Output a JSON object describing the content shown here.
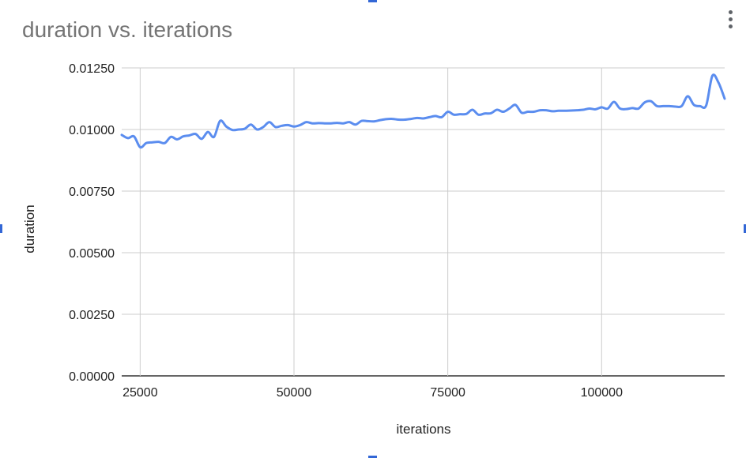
{
  "chart_data": {
    "type": "line",
    "title": "duration vs. iterations",
    "xlabel": "iterations",
    "ylabel": "duration",
    "xlim": [
      22000,
      120000
    ],
    "ylim": [
      0,
      0.0125
    ],
    "x_ticks": [
      25000,
      50000,
      75000,
      100000
    ],
    "x_tick_labels": [
      "25000",
      "50000",
      "75000",
      "100000"
    ],
    "y_ticks": [
      0,
      0.0025,
      0.005,
      0.0075,
      0.01,
      0.0125
    ],
    "y_tick_labels": [
      "0.00000",
      "0.00250",
      "0.00500",
      "0.00750",
      "0.01000",
      "0.01250"
    ],
    "grid": true,
    "legend": "none",
    "series_color": "#5b8def",
    "gridline_color": "#cccccc",
    "series": [
      {
        "x": [
          22000,
          23000,
          24000,
          25000,
          26000,
          27000,
          28000,
          29000,
          30000,
          31000,
          32000,
          33000,
          34000,
          35000,
          36000,
          37000,
          38000,
          39000,
          40000,
          41000,
          42000,
          43000,
          44000,
          45000,
          46000,
          47000,
          48000,
          49000,
          50000,
          51000,
          52000,
          53000,
          54000,
          55000,
          56000,
          57000,
          58000,
          59000,
          60000,
          61000,
          62000,
          63000,
          64000,
          65000,
          66000,
          67000,
          68000,
          69000,
          70000,
          71000,
          72000,
          73000,
          74000,
          75000,
          76000,
          77000,
          78000,
          79000,
          80000,
          81000,
          82000,
          83000,
          84000,
          85000,
          86000,
          87000,
          88000,
          89000,
          90000,
          91000,
          92000,
          93000,
          94000,
          95000,
          96000,
          97000,
          98000,
          99000,
          100000,
          101000,
          102000,
          103000,
          104000,
          105000,
          106000,
          107000,
          108000,
          109000,
          110000,
          111000,
          112000,
          113000,
          114000,
          115000,
          116000,
          117000,
          118000,
          119000,
          120000
        ],
        "y": [
          0.00978,
          0.00965,
          0.00972,
          0.00928,
          0.00945,
          0.00948,
          0.0095,
          0.00945,
          0.0097,
          0.0096,
          0.00972,
          0.00976,
          0.00982,
          0.00962,
          0.0099,
          0.0097,
          0.01035,
          0.01012,
          0.00998,
          0.01,
          0.01003,
          0.0102,
          0.01,
          0.0101,
          0.0103,
          0.0101,
          0.01015,
          0.01018,
          0.01012,
          0.01018,
          0.0103,
          0.01025,
          0.01026,
          0.01025,
          0.01025,
          0.01027,
          0.01025,
          0.0103,
          0.0102,
          0.01035,
          0.01034,
          0.01033,
          0.01038,
          0.01042,
          0.01043,
          0.0104,
          0.0104,
          0.01043,
          0.01047,
          0.01045,
          0.0105,
          0.01055,
          0.0105,
          0.01072,
          0.0106,
          0.01062,
          0.01063,
          0.0108,
          0.0106,
          0.01065,
          0.01066,
          0.0108,
          0.01072,
          0.01085,
          0.011,
          0.01068,
          0.01072,
          0.01072,
          0.01078,
          0.01078,
          0.01074,
          0.01076,
          0.01076,
          0.01077,
          0.01078,
          0.0108,
          0.01085,
          0.01082,
          0.0109,
          0.01085,
          0.01112,
          0.01085,
          0.01083,
          0.01087,
          0.01085,
          0.0111,
          0.01115,
          0.01095,
          0.01095,
          0.01095,
          0.01093,
          0.01095,
          0.01135,
          0.011,
          0.01095,
          0.01098,
          0.01218,
          0.0119,
          0.01125
        ]
      }
    ]
  }
}
